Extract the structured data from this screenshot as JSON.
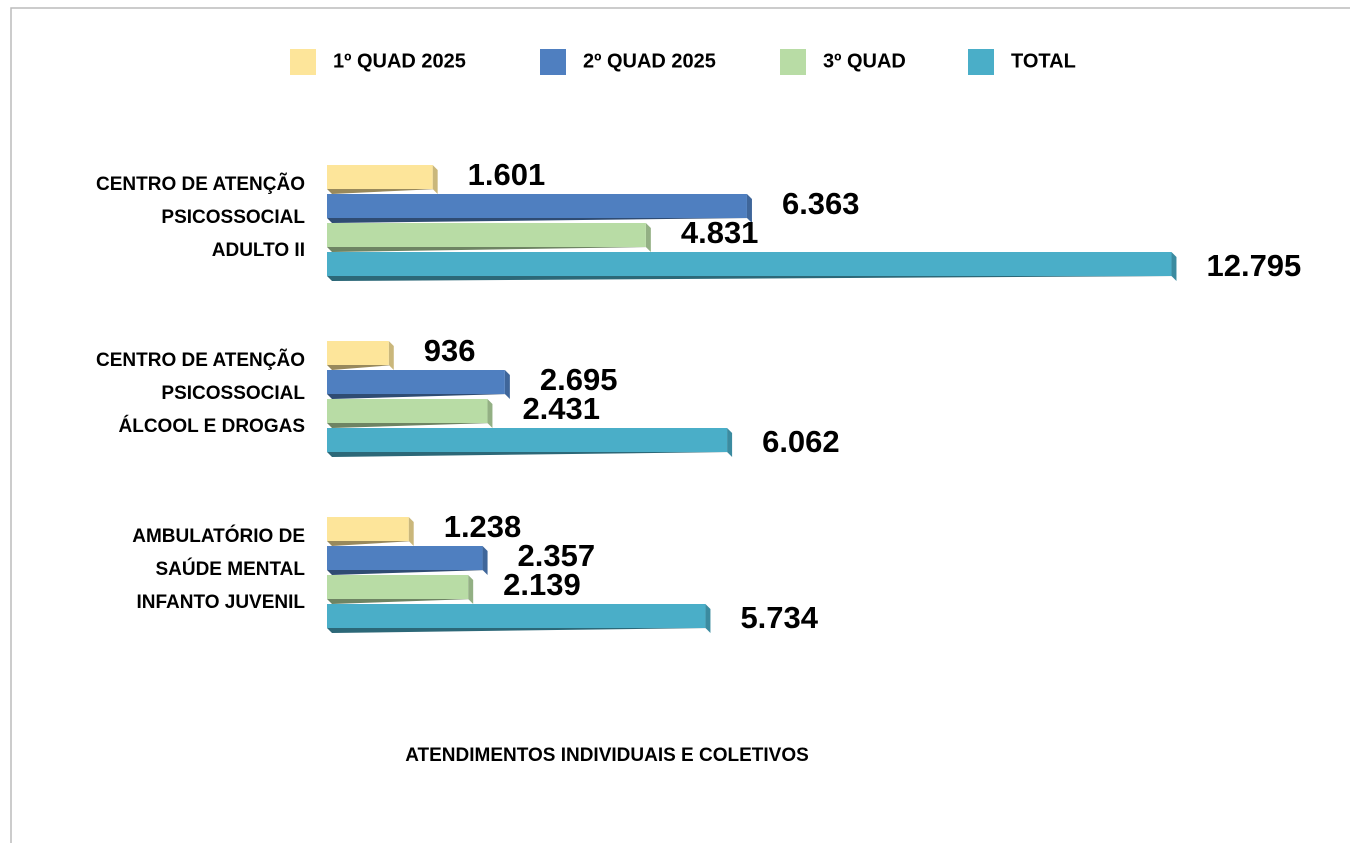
{
  "chart_data": {
    "type": "bar",
    "orientation": "horizontal",
    "title": "ATENDIMENTOS INDIVIDUAIS E COLETIVOS",
    "categories": [
      [
        "CENTRO DE ATENÇÃO",
        "PSICOSSOCIAL",
        "ADULTO II"
      ],
      [
        "CENTRO DE ATENÇÃO",
        "PSICOSSOCIAL",
        "ÁLCOOL E DROGAS"
      ],
      [
        "AMBULATÓRIO DE",
        "SAÚDE MENTAL",
        "INFANTO JUVENIL"
      ]
    ],
    "series": [
      {
        "name": "1º QUAD 2025",
        "color": "#fde59a",
        "values": [
          1601,
          936,
          1238
        ],
        "value_labels": [
          "1.601",
          "936",
          "1.238"
        ]
      },
      {
        "name": "2º QUAD 2025",
        "color": "#4f7fc0",
        "values": [
          6363,
          2695,
          2357
        ],
        "value_labels": [
          "6.363",
          "2.695",
          "2.357"
        ]
      },
      {
        "name": "3º QUAD",
        "color": "#b8dca5",
        "values": [
          4831,
          2431,
          2139
        ],
        "value_labels": [
          "4.831",
          "2.431",
          "2.139"
        ]
      },
      {
        "name": "TOTAL",
        "color": "#4aaec8",
        "values": [
          12795,
          6062,
          5734
        ],
        "value_labels": [
          "12.795",
          "6.062",
          "5.734"
        ]
      }
    ],
    "xlim": [
      0,
      13000
    ],
    "legend": "top"
  }
}
